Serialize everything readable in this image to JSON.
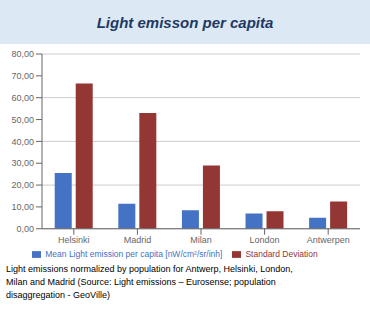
{
  "chart_data": {
    "type": "bar",
    "title": "Light emisson per capita",
    "categories": [
      "Helsinki",
      "Madrid",
      "Milan",
      "London",
      "Antwerpen"
    ],
    "series": [
      {
        "name": "Mean Light emission per capita [nW/cm²/sr/inh]",
        "color": "#4472C4",
        "values": [
          25.5,
          11.5,
          8.5,
          7.0,
          5.0
        ]
      },
      {
        "name": "Standard Deviation",
        "color": "#943634",
        "values": [
          66.5,
          53.0,
          29.0,
          8.0,
          12.5
        ]
      }
    ],
    "ylim": [
      0,
      80
    ],
    "yticks": [
      {
        "value": 0,
        "label": "0,00"
      },
      {
        "value": 10,
        "label": "10,00"
      },
      {
        "value": 20,
        "label": "20,00"
      },
      {
        "value": 30,
        "label": "30,00"
      },
      {
        "value": 40,
        "label": "40,00"
      },
      {
        "value": 50,
        "label": "50,00"
      },
      {
        "value": 60,
        "label": "60,00"
      },
      {
        "value": 70,
        "label": "70,00"
      },
      {
        "value": 80,
        "label": "80,00"
      }
    ],
    "grid": true,
    "legend": "bottom",
    "annotations": [
      "Light emissions normalized by population for Antwerp, Helsinki, London,",
      "Milan and Madrid (Source: Light emissions – Eurosense; population",
      "disaggregation - GeoVille)"
    ]
  }
}
